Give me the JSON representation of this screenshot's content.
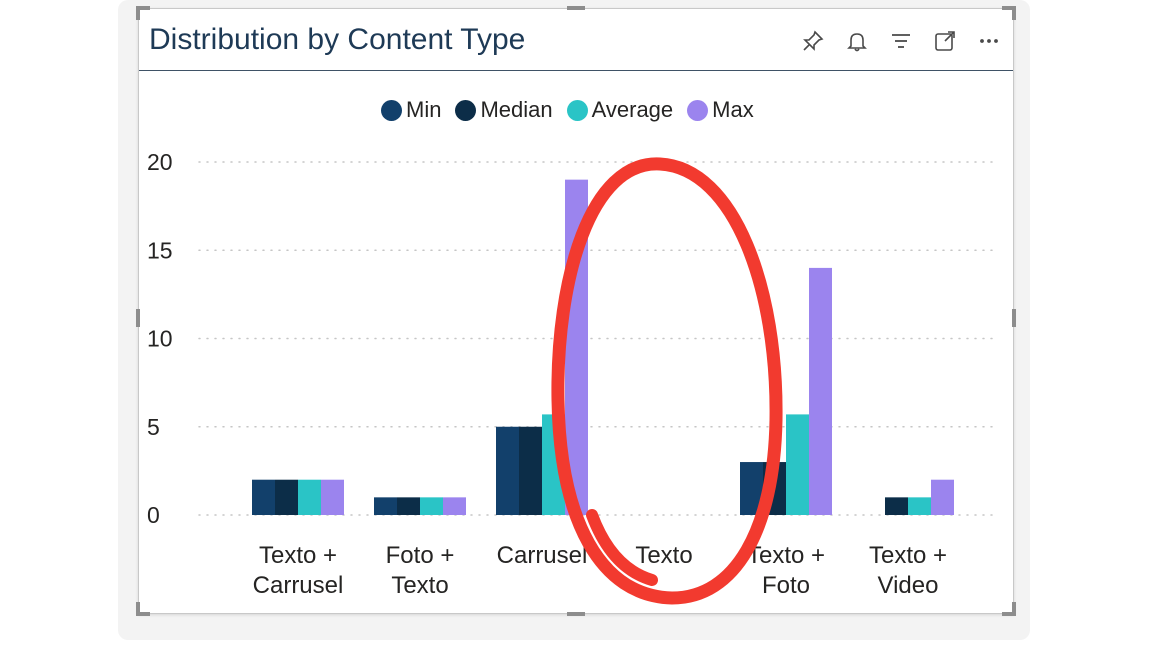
{
  "visual": {
    "title": "Distribution by Content Type",
    "header_icons": [
      "pin-icon",
      "bell-icon",
      "filter-icon",
      "focus-mode-icon",
      "more-options-icon"
    ]
  },
  "chart_data": {
    "type": "bar",
    "title": "Distribution by Content Type",
    "xlabel": "",
    "ylabel": "",
    "ylim": [
      0,
      20
    ],
    "yticks": [
      "0",
      "5",
      "10",
      "15",
      "20"
    ],
    "grid": true,
    "legend_position": "top-center",
    "categories": [
      [
        "Texto +",
        "Carrusel"
      ],
      [
        "Foto +",
        "Texto"
      ],
      [
        "Carrusel"
      ],
      [
        "Texto"
      ],
      [
        "Texto +",
        "Foto"
      ],
      [
        "Texto +",
        "Video"
      ]
    ],
    "series": [
      {
        "name": "Min",
        "color": "#12406b",
        "values": [
          2,
          1,
          5,
          0,
          3,
          0
        ]
      },
      {
        "name": "Median",
        "color": "#0c2d48",
        "values": [
          2,
          1,
          5,
          0,
          3,
          1
        ]
      },
      {
        "name": "Average",
        "color": "#2ac4c6",
        "values": [
          2,
          1,
          5.7,
          0,
          5.7,
          1
        ]
      },
      {
        "name": "Max",
        "color": "#9b84ee",
        "values": [
          2,
          1,
          19,
          0,
          14,
          2
        ]
      }
    ],
    "annotation": {
      "shape": "ellipse",
      "color": "#f23a2f",
      "target": "Texto"
    }
  }
}
